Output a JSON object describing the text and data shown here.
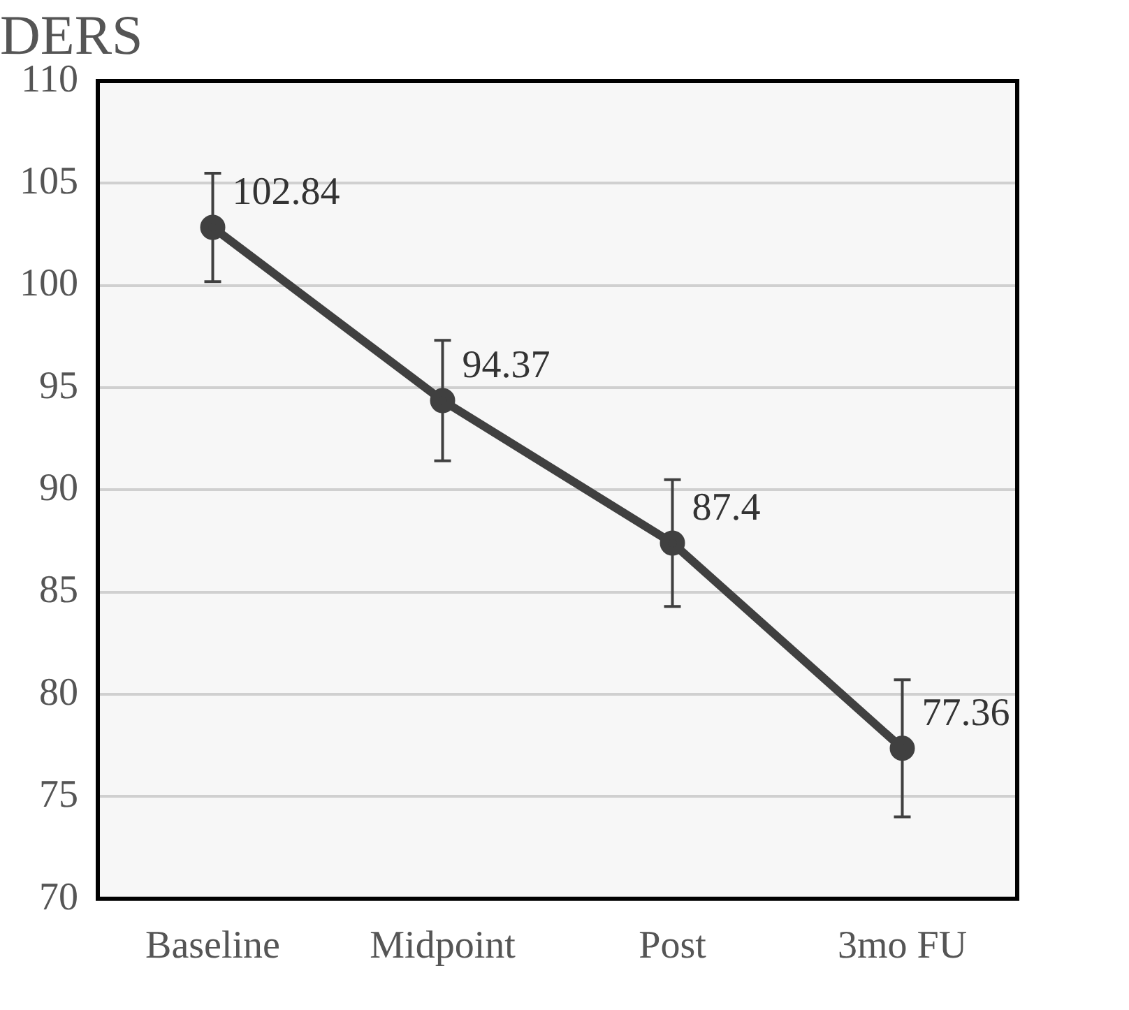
{
  "chart_data": {
    "type": "line",
    "title": "DERS",
    "categories": [
      "Baseline",
      "Midpoint",
      "Post",
      "3mo FU"
    ],
    "series": [
      {
        "color": "#404040",
        "values": [
          102.84,
          94.37,
          87.4,
          77.36
        ],
        "errors": [
          2.65,
          2.95,
          3.1,
          3.35
        ]
      }
    ],
    "ylim": [
      70,
      110
    ],
    "yticks": [
      70,
      75,
      80,
      85,
      90,
      95,
      100,
      105,
      110
    ],
    "grid": "y",
    "marker": "circle",
    "data_labels": true
  }
}
